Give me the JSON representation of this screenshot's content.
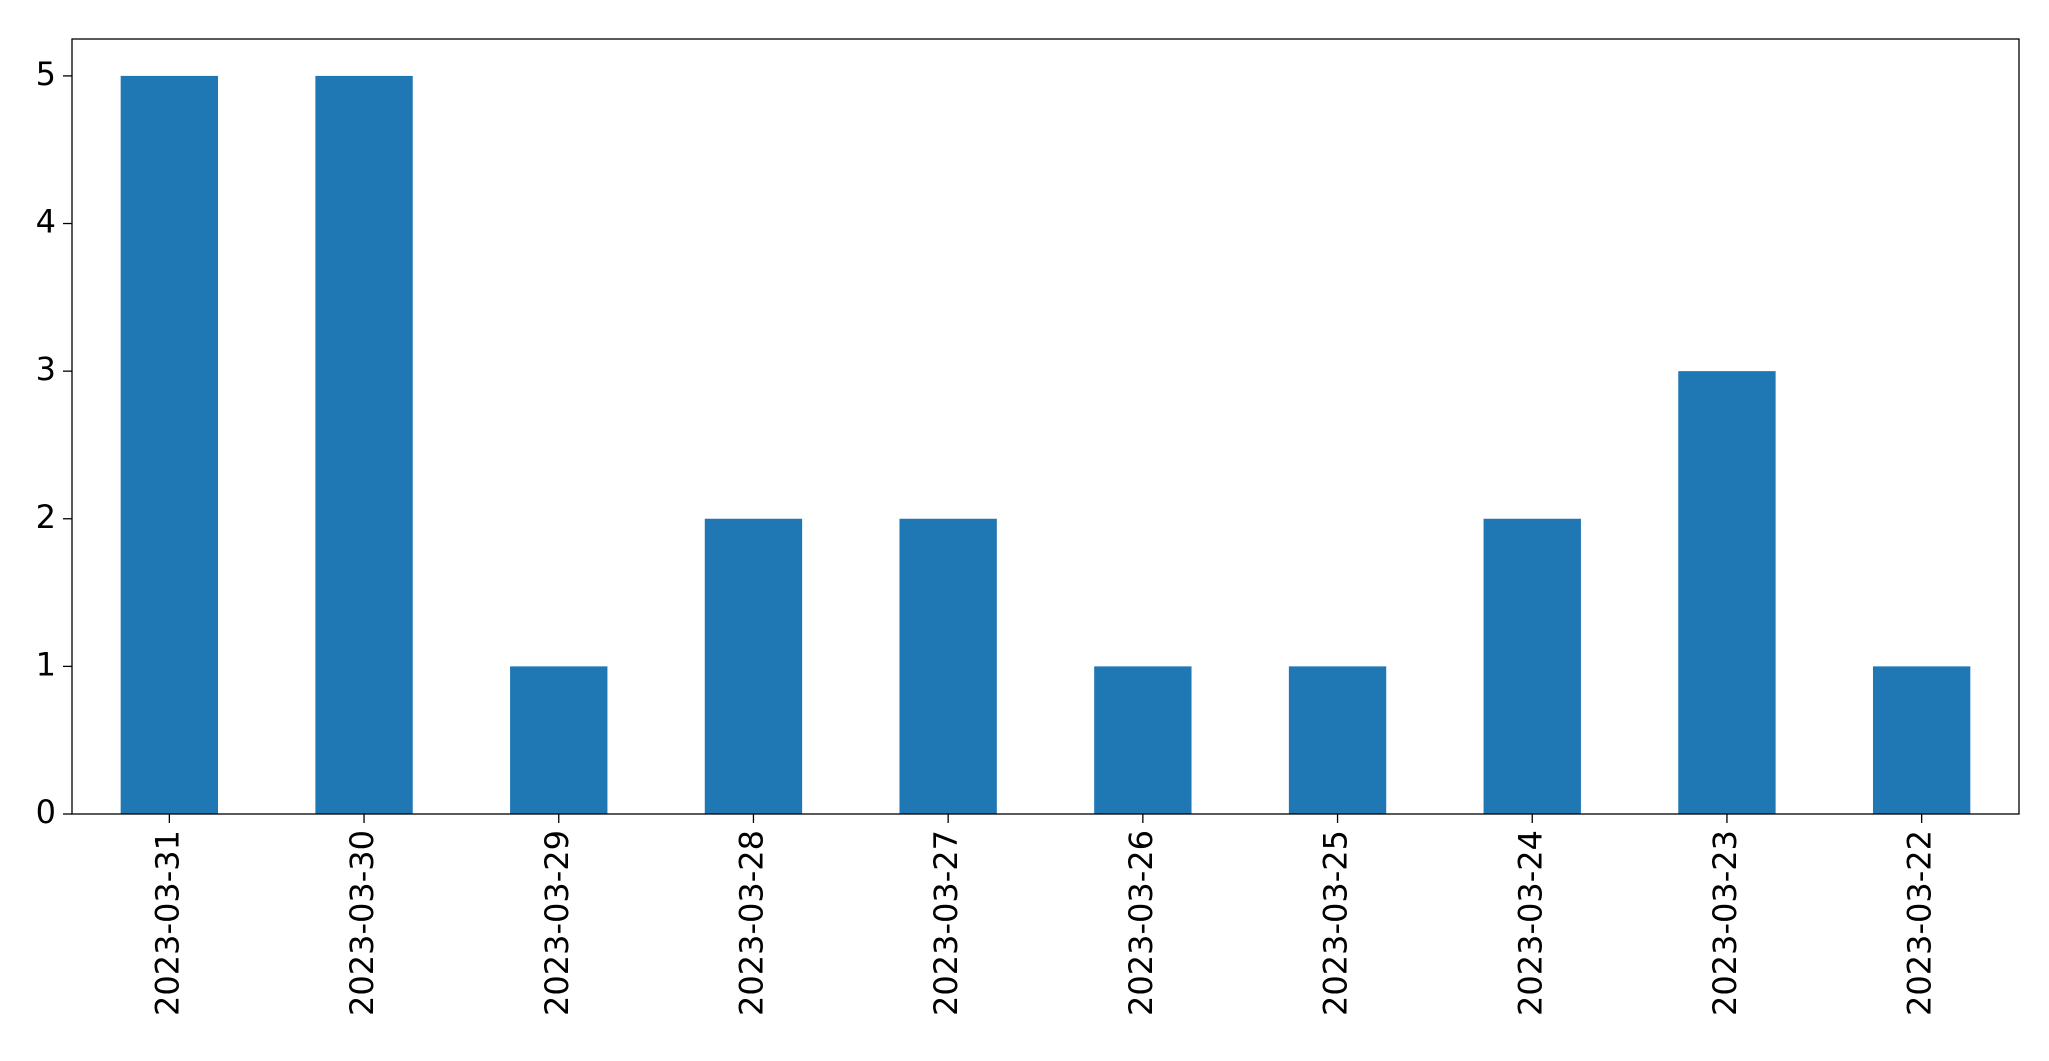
{
  "chart_data": {
    "type": "bar",
    "categories": [
      "2023-03-31",
      "2023-03-30",
      "2023-03-29",
      "2023-03-28",
      "2023-03-27",
      "2023-03-26",
      "2023-03-25",
      "2023-03-24",
      "2023-03-23",
      "2023-03-22"
    ],
    "values": [
      5,
      5,
      1,
      2,
      2,
      1,
      1,
      2,
      3,
      1
    ],
    "color": "#1f77b4",
    "ylim": [
      0,
      5.25
    ],
    "yticks": [
      0,
      1,
      2,
      3,
      4,
      5
    ],
    "grid": false
  }
}
